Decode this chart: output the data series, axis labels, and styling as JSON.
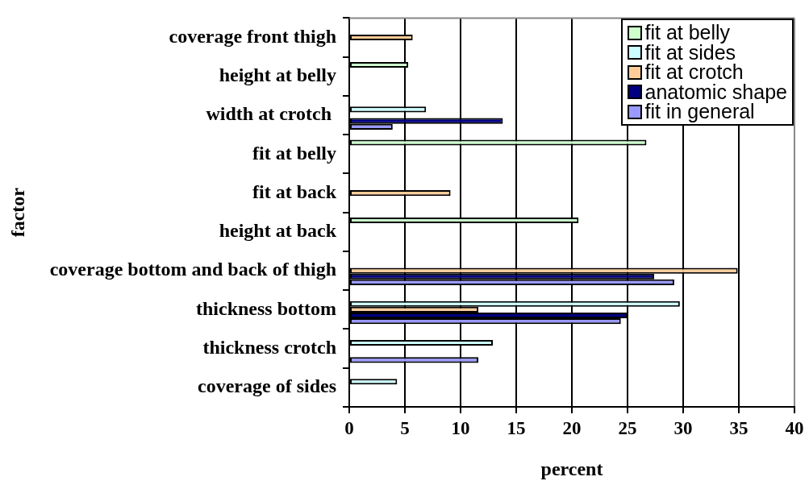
{
  "chart_data": {
    "type": "bar",
    "orientation": "horizontal",
    "xlabel": "percent",
    "ylabel": "factor",
    "categories": [
      "coverage front thigh",
      "height at belly",
      "width at crotch ",
      "fit at belly",
      "fit at back",
      "height at back",
      "coverage bottom and back of thigh",
      "thickness bottom",
      "thickness crotch",
      "coverage of sides"
    ],
    "series": [
      {
        "name": "fit at belly",
        "color": "#ccffcc",
        "values": [
          null,
          5.3,
          null,
          26.7,
          null,
          20.6,
          null,
          null,
          null,
          null
        ]
      },
      {
        "name": "fit at sides",
        "color": "#ccffff",
        "values": [
          null,
          null,
          6.9,
          null,
          null,
          null,
          null,
          29.7,
          12.9,
          4.3
        ]
      },
      {
        "name": "fit at crotch",
        "color": "#ffcc99",
        "values": [
          5.7,
          null,
          null,
          null,
          9.1,
          null,
          34.9,
          11.6,
          null,
          null
        ]
      },
      {
        "name": "anatomic shape",
        "color": "#000080",
        "values": [
          null,
          null,
          13.8,
          null,
          null,
          null,
          27.4,
          25.0,
          null,
          null
        ]
      },
      {
        "name": "fit in general",
        "color": "#9999ff",
        "values": [
          null,
          null,
          3.9,
          null,
          null,
          null,
          29.2,
          24.4,
          11.6,
          null
        ]
      }
    ],
    "xlim": [
      0,
      40
    ],
    "xticks": [
      0,
      5,
      10,
      15,
      20,
      25,
      30,
      35,
      40
    ],
    "grid": "x",
    "legend": "top right"
  }
}
